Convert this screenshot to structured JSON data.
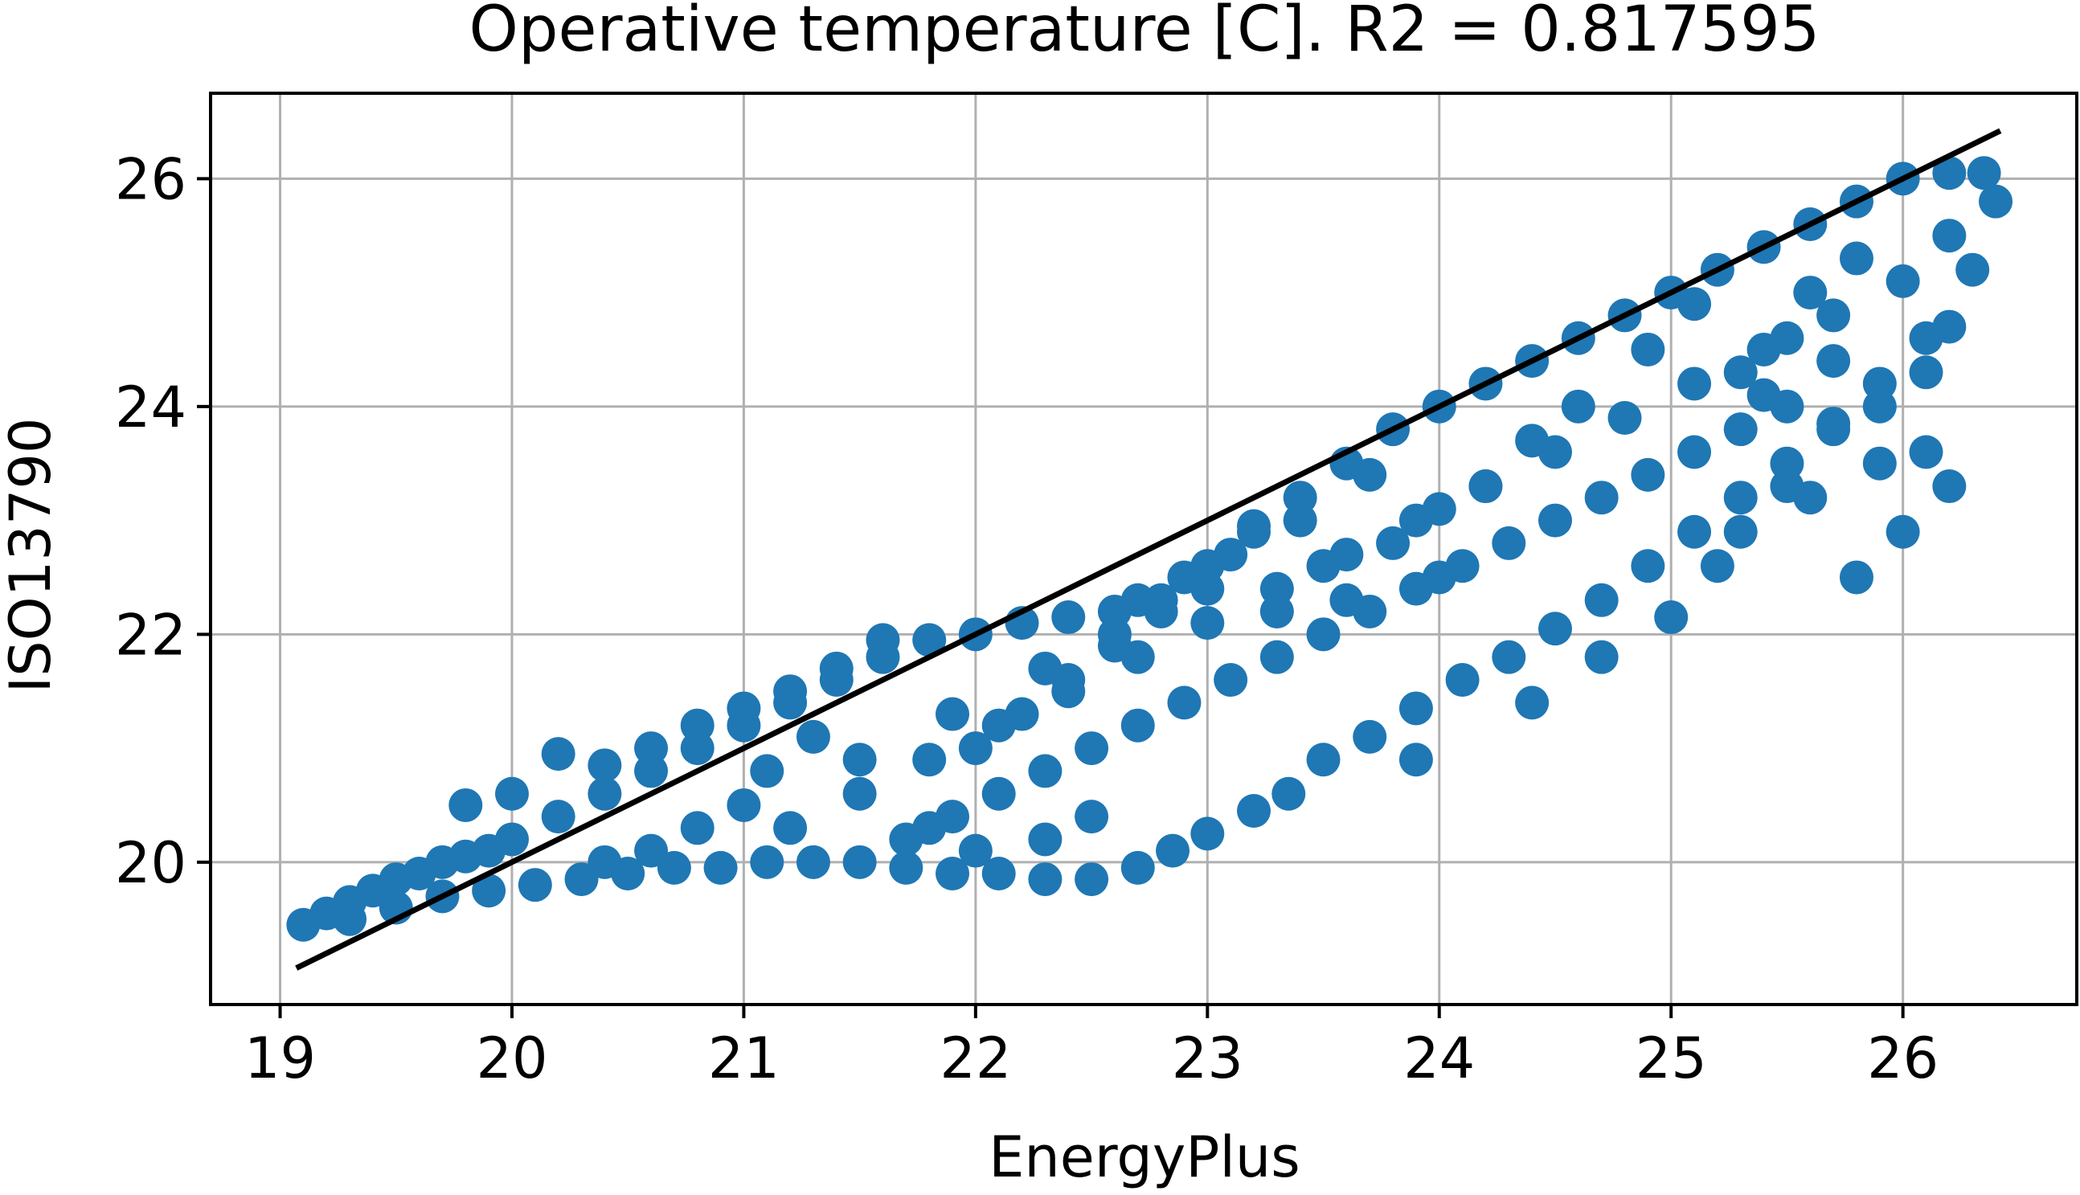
{
  "chart_data": {
    "type": "scatter",
    "title": "Operative temperature [C]. R2 = 0.817595",
    "xlabel": "EnergyPlus",
    "ylabel": "ISO13790",
    "xlim": [
      18.7,
      26.75
    ],
    "ylim": [
      18.75,
      26.75
    ],
    "xticks": [
      19,
      20,
      21,
      22,
      23,
      24,
      25,
      26
    ],
    "yticks": [
      20,
      22,
      24,
      26
    ],
    "grid": true,
    "colors": {
      "points": "#1f77b4",
      "fit_line": "#000000",
      "grid": "#b0b0b0",
      "frame": "#000000"
    },
    "fit_line": {
      "x": [
        19.07,
        26.42
      ],
      "y": [
        19.07,
        26.42
      ]
    },
    "series": [
      {
        "points": [
          [
            19.1,
            19.45
          ],
          [
            19.2,
            19.55
          ],
          [
            19.3,
            19.65
          ],
          [
            19.4,
            19.75
          ],
          [
            19.5,
            19.85
          ],
          [
            19.6,
            19.9
          ],
          [
            19.7,
            20.0
          ],
          [
            19.8,
            20.05
          ],
          [
            19.9,
            20.1
          ],
          [
            20.0,
            20.2
          ],
          [
            19.3,
            19.5
          ],
          [
            19.5,
            19.6
          ],
          [
            19.7,
            19.7
          ],
          [
            19.9,
            19.75
          ],
          [
            20.1,
            19.8
          ],
          [
            20.3,
            19.85
          ],
          [
            20.5,
            19.9
          ],
          [
            20.7,
            19.95
          ],
          [
            20.9,
            19.95
          ],
          [
            21.1,
            20.0
          ],
          [
            21.3,
            20.0
          ],
          [
            21.5,
            20.0
          ],
          [
            21.7,
            19.95
          ],
          [
            21.9,
            19.9
          ],
          [
            22.1,
            19.9
          ],
          [
            22.3,
            19.85
          ],
          [
            22.5,
            19.85
          ],
          [
            22.7,
            19.95
          ],
          [
            22.85,
            20.1
          ],
          [
            23.0,
            20.25
          ],
          [
            23.2,
            20.45
          ],
          [
            23.35,
            20.6
          ],
          [
            23.5,
            20.9
          ],
          [
            23.7,
            21.1
          ],
          [
            23.9,
            21.35
          ],
          [
            24.1,
            21.6
          ],
          [
            24.3,
            21.8
          ],
          [
            24.5,
            22.05
          ],
          [
            24.7,
            22.3
          ],
          [
            24.9,
            22.6
          ],
          [
            25.1,
            22.9
          ],
          [
            25.3,
            23.2
          ],
          [
            25.5,
            23.5
          ],
          [
            25.7,
            23.85
          ],
          [
            25.9,
            24.2
          ],
          [
            26.1,
            24.6
          ],
          [
            26.3,
            25.2
          ],
          [
            26.4,
            25.8
          ],
          [
            26.35,
            26.05
          ],
          [
            26.2,
            26.05
          ],
          [
            20.2,
            20.4
          ],
          [
            20.4,
            20.6
          ],
          [
            20.6,
            20.8
          ],
          [
            20.8,
            21.0
          ],
          [
            21.0,
            21.2
          ],
          [
            21.2,
            21.4
          ],
          [
            21.4,
            21.6
          ],
          [
            21.6,
            21.8
          ],
          [
            21.8,
            21.95
          ],
          [
            22.0,
            22.0
          ],
          [
            22.2,
            22.1
          ],
          [
            22.4,
            22.15
          ],
          [
            22.6,
            22.2
          ],
          [
            22.8,
            22.3
          ],
          [
            23.0,
            22.6
          ],
          [
            23.2,
            22.9
          ],
          [
            23.4,
            23.2
          ],
          [
            23.6,
            23.5
          ],
          [
            23.8,
            23.8
          ],
          [
            24.0,
            24.0
          ],
          [
            24.2,
            24.2
          ],
          [
            24.4,
            24.4
          ],
          [
            24.6,
            24.6
          ],
          [
            24.8,
            24.8
          ],
          [
            25.0,
            25.0
          ],
          [
            25.2,
            25.2
          ],
          [
            25.4,
            25.4
          ],
          [
            25.6,
            25.6
          ],
          [
            25.8,
            25.8
          ],
          [
            26.0,
            26.0
          ],
          [
            19.8,
            20.5
          ],
          [
            20.0,
            20.6
          ],
          [
            20.2,
            20.95
          ],
          [
            20.4,
            20.85
          ],
          [
            20.6,
            21.0
          ],
          [
            20.8,
            21.2
          ],
          [
            21.0,
            21.35
          ],
          [
            21.2,
            21.5
          ],
          [
            21.4,
            21.7
          ],
          [
            21.6,
            21.95
          ],
          [
            21.7,
            20.2
          ],
          [
            21.9,
            20.4
          ],
          [
            22.1,
            20.6
          ],
          [
            22.3,
            20.8
          ],
          [
            22.5,
            21.0
          ],
          [
            22.7,
            21.2
          ],
          [
            22.9,
            21.4
          ],
          [
            23.1,
            21.6
          ],
          [
            23.3,
            21.8
          ],
          [
            23.5,
            22.0
          ],
          [
            23.7,
            22.2
          ],
          [
            23.9,
            22.4
          ],
          [
            24.1,
            22.6
          ],
          [
            24.3,
            22.8
          ],
          [
            24.5,
            23.0
          ],
          [
            24.7,
            23.2
          ],
          [
            24.9,
            23.4
          ],
          [
            25.1,
            23.6
          ],
          [
            25.3,
            23.8
          ],
          [
            25.5,
            24.0
          ],
          [
            21.2,
            20.3
          ],
          [
            21.5,
            20.6
          ],
          [
            21.8,
            20.9
          ],
          [
            22.1,
            21.2
          ],
          [
            22.4,
            21.5
          ],
          [
            22.7,
            21.8
          ],
          [
            23.0,
            22.1
          ],
          [
            23.3,
            22.4
          ],
          [
            23.6,
            22.7
          ],
          [
            23.9,
            23.0
          ],
          [
            24.2,
            23.3
          ],
          [
            24.5,
            23.6
          ],
          [
            24.8,
            23.9
          ],
          [
            25.1,
            24.2
          ],
          [
            25.4,
            24.5
          ],
          [
            25.7,
            24.8
          ],
          [
            26.0,
            25.1
          ],
          [
            26.2,
            25.5
          ],
          [
            22.0,
            21.0
          ],
          [
            22.2,
            21.3
          ],
          [
            22.4,
            21.6
          ],
          [
            22.6,
            21.9
          ],
          [
            22.8,
            22.2
          ],
          [
            23.0,
            22.4
          ],
          [
            22.5,
            20.4
          ],
          [
            22.3,
            20.2
          ],
          [
            22.0,
            20.1
          ],
          [
            21.8,
            20.3
          ],
          [
            21.5,
            20.9
          ],
          [
            21.3,
            21.1
          ],
          [
            21.0,
            20.5
          ],
          [
            20.8,
            20.3
          ],
          [
            20.6,
            20.1
          ],
          [
            20.4,
            20.0
          ],
          [
            21.1,
            20.8
          ],
          [
            21.9,
            21.3
          ],
          [
            22.3,
            21.7
          ],
          [
            22.6,
            22.0
          ],
          [
            23.3,
            22.2
          ],
          [
            23.6,
            22.3
          ],
          [
            23.8,
            22.8
          ],
          [
            24.0,
            22.5
          ],
          [
            23.5,
            22.6
          ],
          [
            23.2,
            22.95
          ],
          [
            23.9,
            20.9
          ],
          [
            24.4,
            21.4
          ],
          [
            24.7,
            21.8
          ],
          [
            25.0,
            22.15
          ],
          [
            25.2,
            22.6
          ],
          [
            25.3,
            22.9
          ],
          [
            25.5,
            23.3
          ],
          [
            25.6,
            23.2
          ],
          [
            25.8,
            22.5
          ],
          [
            26.0,
            22.9
          ],
          [
            26.2,
            23.3
          ],
          [
            26.1,
            23.6
          ],
          [
            25.9,
            23.5
          ],
          [
            25.7,
            23.8
          ],
          [
            25.5,
            24.6
          ],
          [
            25.7,
            24.4
          ],
          [
            25.9,
            24.0
          ],
          [
            26.1,
            24.3
          ],
          [
            26.2,
            24.7
          ],
          [
            25.4,
            24.1
          ],
          [
            25.6,
            25.0
          ],
          [
            25.8,
            25.3
          ],
          [
            25.3,
            24.3
          ],
          [
            25.1,
            24.9
          ],
          [
            24.9,
            24.5
          ],
          [
            24.6,
            24.0
          ],
          [
            24.4,
            23.7
          ],
          [
            24.2,
            23.3
          ],
          [
            24.0,
            23.1
          ],
          [
            23.7,
            23.4
          ],
          [
            23.4,
            23.0
          ],
          [
            23.1,
            22.7
          ],
          [
            22.9,
            22.5
          ],
          [
            22.7,
            22.3
          ]
        ]
      }
    ]
  }
}
